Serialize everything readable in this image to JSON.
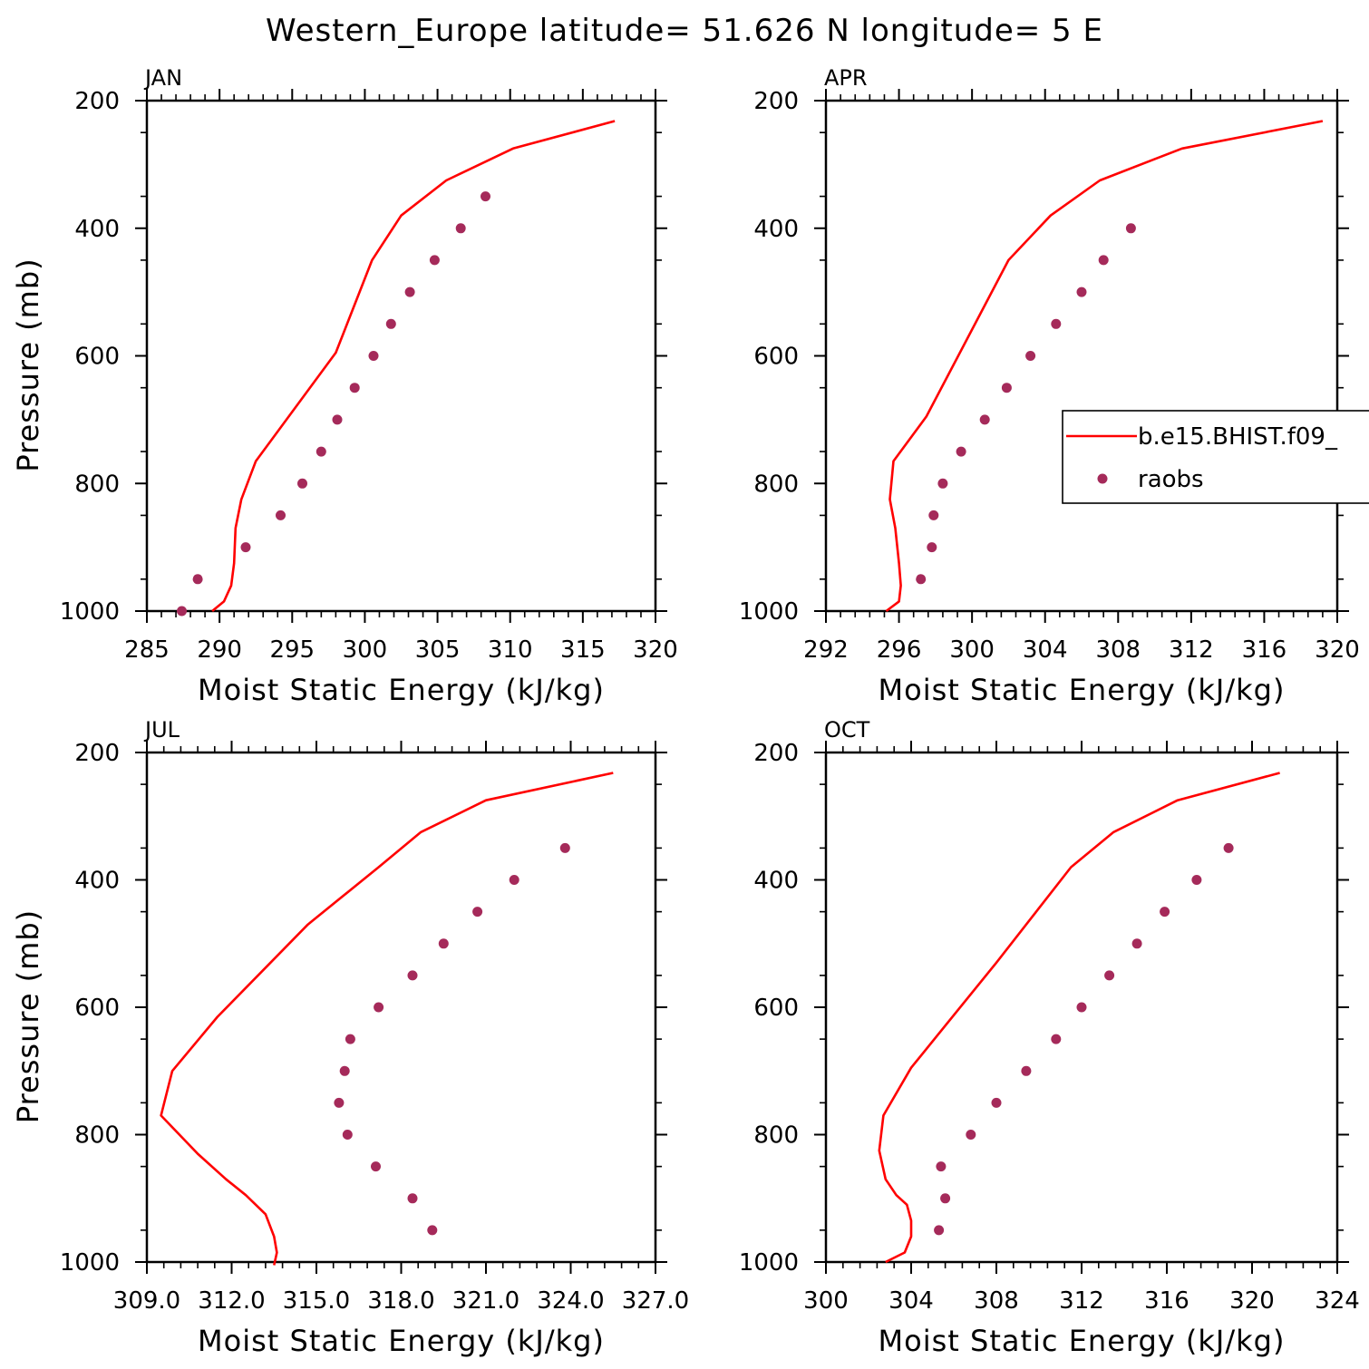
{
  "title": "Western_Europe  latitude= 51.626 N longitude= 5 E",
  "colors": {
    "model": "#ff0000",
    "obs": "#a52a5a",
    "axis": "#000000"
  },
  "legend": {
    "location": "apr-panel-right",
    "entries": [
      {
        "label": "b.e15.BHIST.f09_",
        "style": "line",
        "color": "#ff0000"
      },
      {
        "label": "raobs",
        "style": "marker",
        "color": "#a52a5a"
      }
    ]
  },
  "chart_data": [
    {
      "type": "line",
      "panel": "JAN",
      "xlabel": "Moist Static Energy (kJ/kg)",
      "ylabel": "Pressure (mb)",
      "xlim": [
        285,
        320
      ],
      "ylim": [
        1000,
        200
      ],
      "xticks": [
        "285",
        "290",
        "295",
        "300",
        "305",
        "310",
        "315",
        "320"
      ],
      "xtick_values": [
        285,
        290,
        295,
        300,
        305,
        310,
        315,
        320
      ],
      "yticks": [
        200,
        400,
        600,
        800,
        1000
      ],
      "ytick_labels": [
        "200",
        "400",
        "600",
        "800",
        "1000"
      ],
      "series": [
        {
          "name": "b.e15.BHIST.f09_",
          "kind": "line",
          "x": [
            289.5,
            290.3,
            290.8,
            291.0,
            291.1,
            291.5,
            292.5,
            298.0,
            300.5,
            302.5,
            305.6,
            310.2,
            317.2
          ],
          "y": [
            1000,
            985,
            960,
            925,
            870,
            825,
            765,
            595,
            450,
            380,
            325,
            275,
            232
          ]
        },
        {
          "name": "raobs",
          "kind": "scatter",
          "x": [
            287.4,
            288.5,
            291.8,
            294.2,
            295.7,
            297.0,
            298.1,
            299.3,
            300.6,
            301.8,
            303.1,
            304.8,
            306.6,
            308.3
          ],
          "y": [
            1000,
            950,
            900,
            850,
            800,
            750,
            700,
            650,
            600,
            550,
            500,
            450,
            400,
            350
          ]
        }
      ]
    },
    {
      "type": "line",
      "panel": "APR",
      "xlabel": "Moist Static Energy (kJ/kg)",
      "ylabel": "",
      "xlim": [
        292,
        320
      ],
      "ylim": [
        1000,
        200
      ],
      "xticks": [
        "292",
        "296",
        "300",
        "304",
        "308",
        "312",
        "316",
        "320"
      ],
      "xtick_values": [
        292,
        296,
        300,
        304,
        308,
        312,
        316,
        320
      ],
      "yticks": [
        200,
        400,
        600,
        800,
        1000
      ],
      "ytick_labels": [
        "200",
        "400",
        "600",
        "800",
        "1000"
      ],
      "series": [
        {
          "name": "b.e15.BHIST.f09_",
          "kind": "line",
          "x": [
            295.3,
            296.0,
            296.1,
            296.0,
            295.8,
            295.5,
            295.7,
            297.5,
            302.0,
            304.3,
            307.0,
            311.5,
            319.2
          ],
          "y": [
            1000,
            985,
            960,
            925,
            870,
            825,
            765,
            695,
            450,
            380,
            325,
            275,
            232
          ]
        },
        {
          "name": "raobs",
          "kind": "scatter",
          "x": [
            297.2,
            297.8,
            297.9,
            298.4,
            299.4,
            300.7,
            301.9,
            303.2,
            304.6,
            306.0,
            307.2,
            308.7
          ],
          "y": [
            950,
            900,
            850,
            800,
            750,
            700,
            650,
            600,
            550,
            500,
            450,
            400
          ]
        }
      ]
    },
    {
      "type": "line",
      "panel": "JUL",
      "xlabel": "Moist Static Energy (kJ/kg)",
      "ylabel": "Pressure (mb)",
      "xlim": [
        309.0,
        327.0
      ],
      "ylim": [
        1000,
        200
      ],
      "xticks": [
        "309.0",
        "312.0",
        "315.0",
        "318.0",
        "321.0",
        "324.0",
        "327.0"
      ],
      "xtick_values": [
        309,
        312,
        315,
        318,
        321,
        324,
        327
      ],
      "yticks": [
        200,
        400,
        600,
        800,
        1000
      ],
      "ytick_labels": [
        "200",
        "400",
        "600",
        "800",
        "1000"
      ],
      "series": [
        {
          "name": "b.e15.BHIST.f09_",
          "kind": "line",
          "x": [
            313.5,
            313.6,
            313.5,
            313.2,
            312.5,
            311.8,
            310.8,
            309.5,
            309.9,
            311.5,
            314.7,
            317.2,
            318.7,
            321.0,
            325.5
          ],
          "y": [
            1005,
            985,
            960,
            925,
            895,
            870,
            830,
            770,
            700,
            615,
            470,
            380,
            325,
            275,
            232
          ]
        },
        {
          "name": "raobs",
          "kind": "scatter",
          "x": [
            319.1,
            318.4,
            317.1,
            316.1,
            315.8,
            316.0,
            316.2,
            317.2,
            318.4,
            319.5,
            320.7,
            322.0,
            323.8
          ],
          "y": [
            950,
            900,
            850,
            800,
            750,
            700,
            650,
            600,
            550,
            500,
            450,
            400,
            350
          ]
        }
      ]
    },
    {
      "type": "line",
      "panel": "OCT",
      "xlabel": "Moist Static Energy (kJ/kg)",
      "ylabel": "",
      "xlim": [
        300,
        324
      ],
      "ylim": [
        1000,
        200
      ],
      "xticks": [
        "300",
        "304",
        "308",
        "312",
        "316",
        "320",
        "324"
      ],
      "xtick_values": [
        300,
        304,
        308,
        312,
        316,
        320,
        324
      ],
      "yticks": [
        200,
        400,
        600,
        800,
        1000
      ],
      "ytick_labels": [
        "200",
        "400",
        "600",
        "800",
        "1000"
      ],
      "series": [
        {
          "name": "b.e15.BHIST.f09_",
          "kind": "line",
          "x": [
            302.8,
            303.7,
            304.0,
            304.0,
            303.8,
            303.3,
            302.8,
            302.5,
            302.7,
            304.0,
            308.0,
            311.5,
            313.5,
            316.5,
            321.3
          ],
          "y": [
            1000,
            985,
            960,
            935,
            910,
            895,
            870,
            825,
            770,
            695,
            530,
            380,
            325,
            275,
            232
          ]
        },
        {
          "name": "raobs",
          "kind": "scatter",
          "x": [
            305.3,
            305.6,
            305.4,
            306.8,
            308.0,
            309.4,
            310.8,
            312.0,
            313.3,
            314.6,
            315.9,
            317.4,
            318.9
          ],
          "y": [
            950,
            900,
            850,
            800,
            750,
            700,
            650,
            600,
            550,
            500,
            450,
            400,
            350
          ]
        }
      ]
    }
  ]
}
